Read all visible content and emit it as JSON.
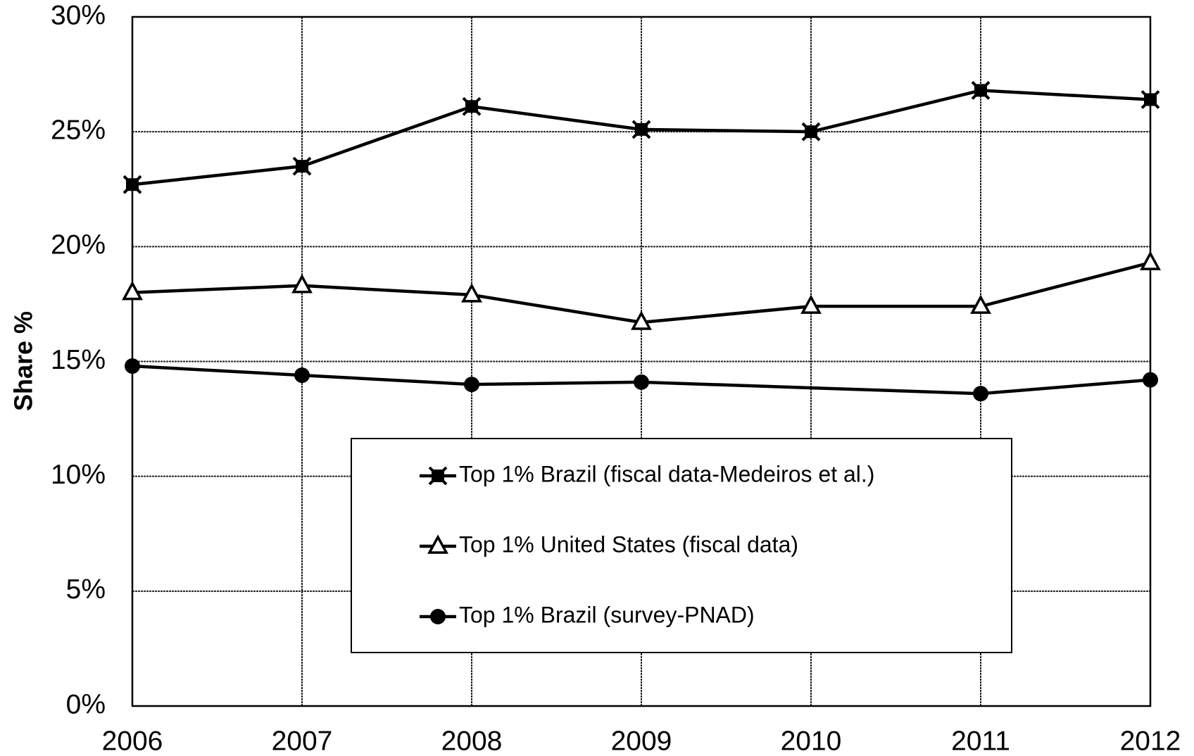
{
  "chart_data": {
    "type": "line",
    "y_label": "Share %",
    "xlim": [
      2006,
      2012
    ],
    "xticks": [
      2006,
      2007,
      2008,
      2009,
      2010,
      2011,
      2012
    ],
    "ylim": [
      0,
      30
    ],
    "yticks": [
      {
        "value": 0,
        "label": "0%"
      },
      {
        "value": 5,
        "label": "5%"
      },
      {
        "value": 10,
        "label": "10%"
      },
      {
        "value": 15,
        "label": "15%"
      },
      {
        "value": 20,
        "label": "20%"
      },
      {
        "value": 25,
        "label": "25%"
      },
      {
        "value": 30,
        "label": "30%"
      }
    ],
    "grid": true,
    "series": [
      {
        "name": "Top 1% Brazil (fiscal data-Medeiros et al.)",
        "color": "#000000",
        "marker": "x-square",
        "x": [
          2006,
          2007,
          2008,
          2009,
          2010,
          2011,
          2012
        ],
        "values": [
          22.7,
          23.5,
          26.1,
          25.1,
          25.0,
          26.8,
          26.4
        ]
      },
      {
        "name": "Top 1% United States (fiscal data)",
        "color": "#000000",
        "marker": "triangle",
        "x": [
          2006,
          2007,
          2008,
          2009,
          2010,
          2011,
          2012
        ],
        "values": [
          18.0,
          18.3,
          17.9,
          16.7,
          17.4,
          17.4,
          19.3
        ]
      },
      {
        "name": "Top 1% Brazil (survey-PNAD)",
        "color": "#000000",
        "marker": "circle",
        "x": [
          2006,
          2007,
          2008,
          2009,
          2011,
          2012
        ],
        "values": [
          14.8,
          14.4,
          14.0,
          14.1,
          13.6,
          14.2
        ]
      }
    ]
  }
}
